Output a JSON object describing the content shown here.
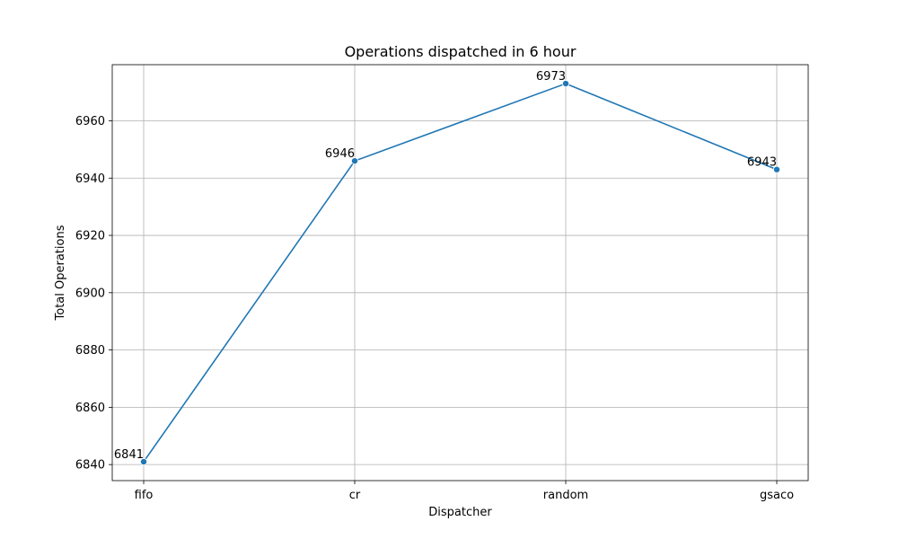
{
  "chart_data": {
    "type": "line",
    "title": "Operations dispatched in 6 hour",
    "xlabel": "Dispatcher",
    "ylabel": "Total Operations",
    "categories": [
      "fifo",
      "cr",
      "random",
      "gsaco"
    ],
    "series": [
      {
        "values": [
          6841,
          6946,
          6973,
          6943
        ]
      }
    ],
    "data_labels": [
      "6841",
      "6946",
      "6973",
      "6943"
    ],
    "yticks": [
      6840,
      6860,
      6880,
      6900,
      6920,
      6940,
      6960
    ],
    "ylim": [
      6834.4,
      6979.6
    ],
    "grid": true,
    "line_color": "#1f77b4"
  }
}
